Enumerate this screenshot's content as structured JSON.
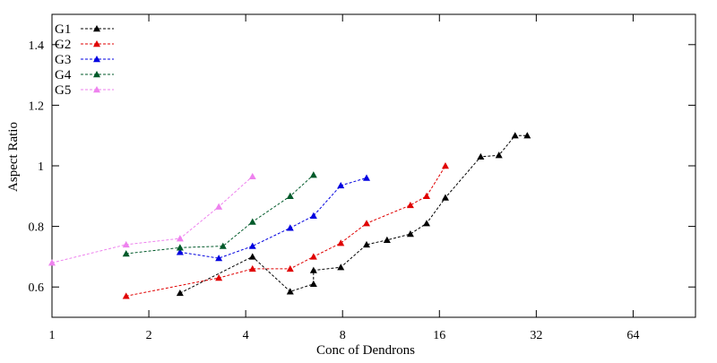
{
  "chart_data": {
    "type": "line",
    "title": "",
    "xlabel": "Conc of Dendrons",
    "ylabel": "Aspect Ratio",
    "x_scale": "log2",
    "xlim": [
      1,
      100
    ],
    "ylim": [
      0.5,
      1.5
    ],
    "x_ticks": [
      {
        "value": 1,
        "label": "1"
      },
      {
        "value": 2,
        "label": "2"
      },
      {
        "value": 4,
        "label": "4"
      },
      {
        "value": 8,
        "label": "8"
      },
      {
        "value": 16,
        "label": "16"
      },
      {
        "value": 32,
        "label": "32"
      },
      {
        "value": 64,
        "label": "64"
      }
    ],
    "y_ticks": [
      {
        "value": 0.6,
        "label": "0.6"
      },
      {
        "value": 0.8,
        "label": "0.8"
      },
      {
        "value": 1.0,
        "label": "1"
      },
      {
        "value": 1.2,
        "label": "1.2"
      },
      {
        "value": 1.4,
        "label": "1.4"
      }
    ],
    "grid": false,
    "legend_position": "top-left",
    "marker": "triangle",
    "line_style": "dashed",
    "series": [
      {
        "name": "G1",
        "color": "#000000",
        "x": [
          2.5,
          4.2,
          5.5,
          6.5,
          6.5,
          7.9,
          9.5,
          11,
          13,
          14.6,
          16.7,
          21.5,
          24.5,
          27.5,
          30
        ],
        "y": [
          0.58,
          0.7,
          0.585,
          0.61,
          0.655,
          0.665,
          0.74,
          0.755,
          0.775,
          0.81,
          0.895,
          1.03,
          1.035,
          1.1,
          1.1
        ]
      },
      {
        "name": "G2",
        "color": "#e00000",
        "x": [
          1.7,
          3.3,
          4.2,
          5.5,
          6.5,
          7.9,
          9.5,
          13,
          14.6,
          16.7
        ],
        "y": [
          0.57,
          0.63,
          0.66,
          0.66,
          0.7,
          0.745,
          0.81,
          0.87,
          0.9,
          1.0
        ]
      },
      {
        "name": "G3",
        "color": "#0000e0",
        "x": [
          2.5,
          3.3,
          4.2,
          5.5,
          6.5,
          7.9,
          9.5
        ],
        "y": [
          0.715,
          0.695,
          0.735,
          0.795,
          0.835,
          0.935,
          0.96
        ]
      },
      {
        "name": "G4",
        "color": "#005a2a",
        "x": [
          1.7,
          2.5,
          3.4,
          4.2,
          5.5,
          6.5
        ],
        "y": [
          0.71,
          0.73,
          0.735,
          0.815,
          0.9,
          0.97
        ]
      },
      {
        "name": "G5",
        "color": "#ee82ee",
        "x": [
          1,
          1.7,
          2.5,
          3.3,
          4.2
        ],
        "y": [
          0.68,
          0.74,
          0.76,
          0.865,
          0.965
        ]
      }
    ]
  }
}
